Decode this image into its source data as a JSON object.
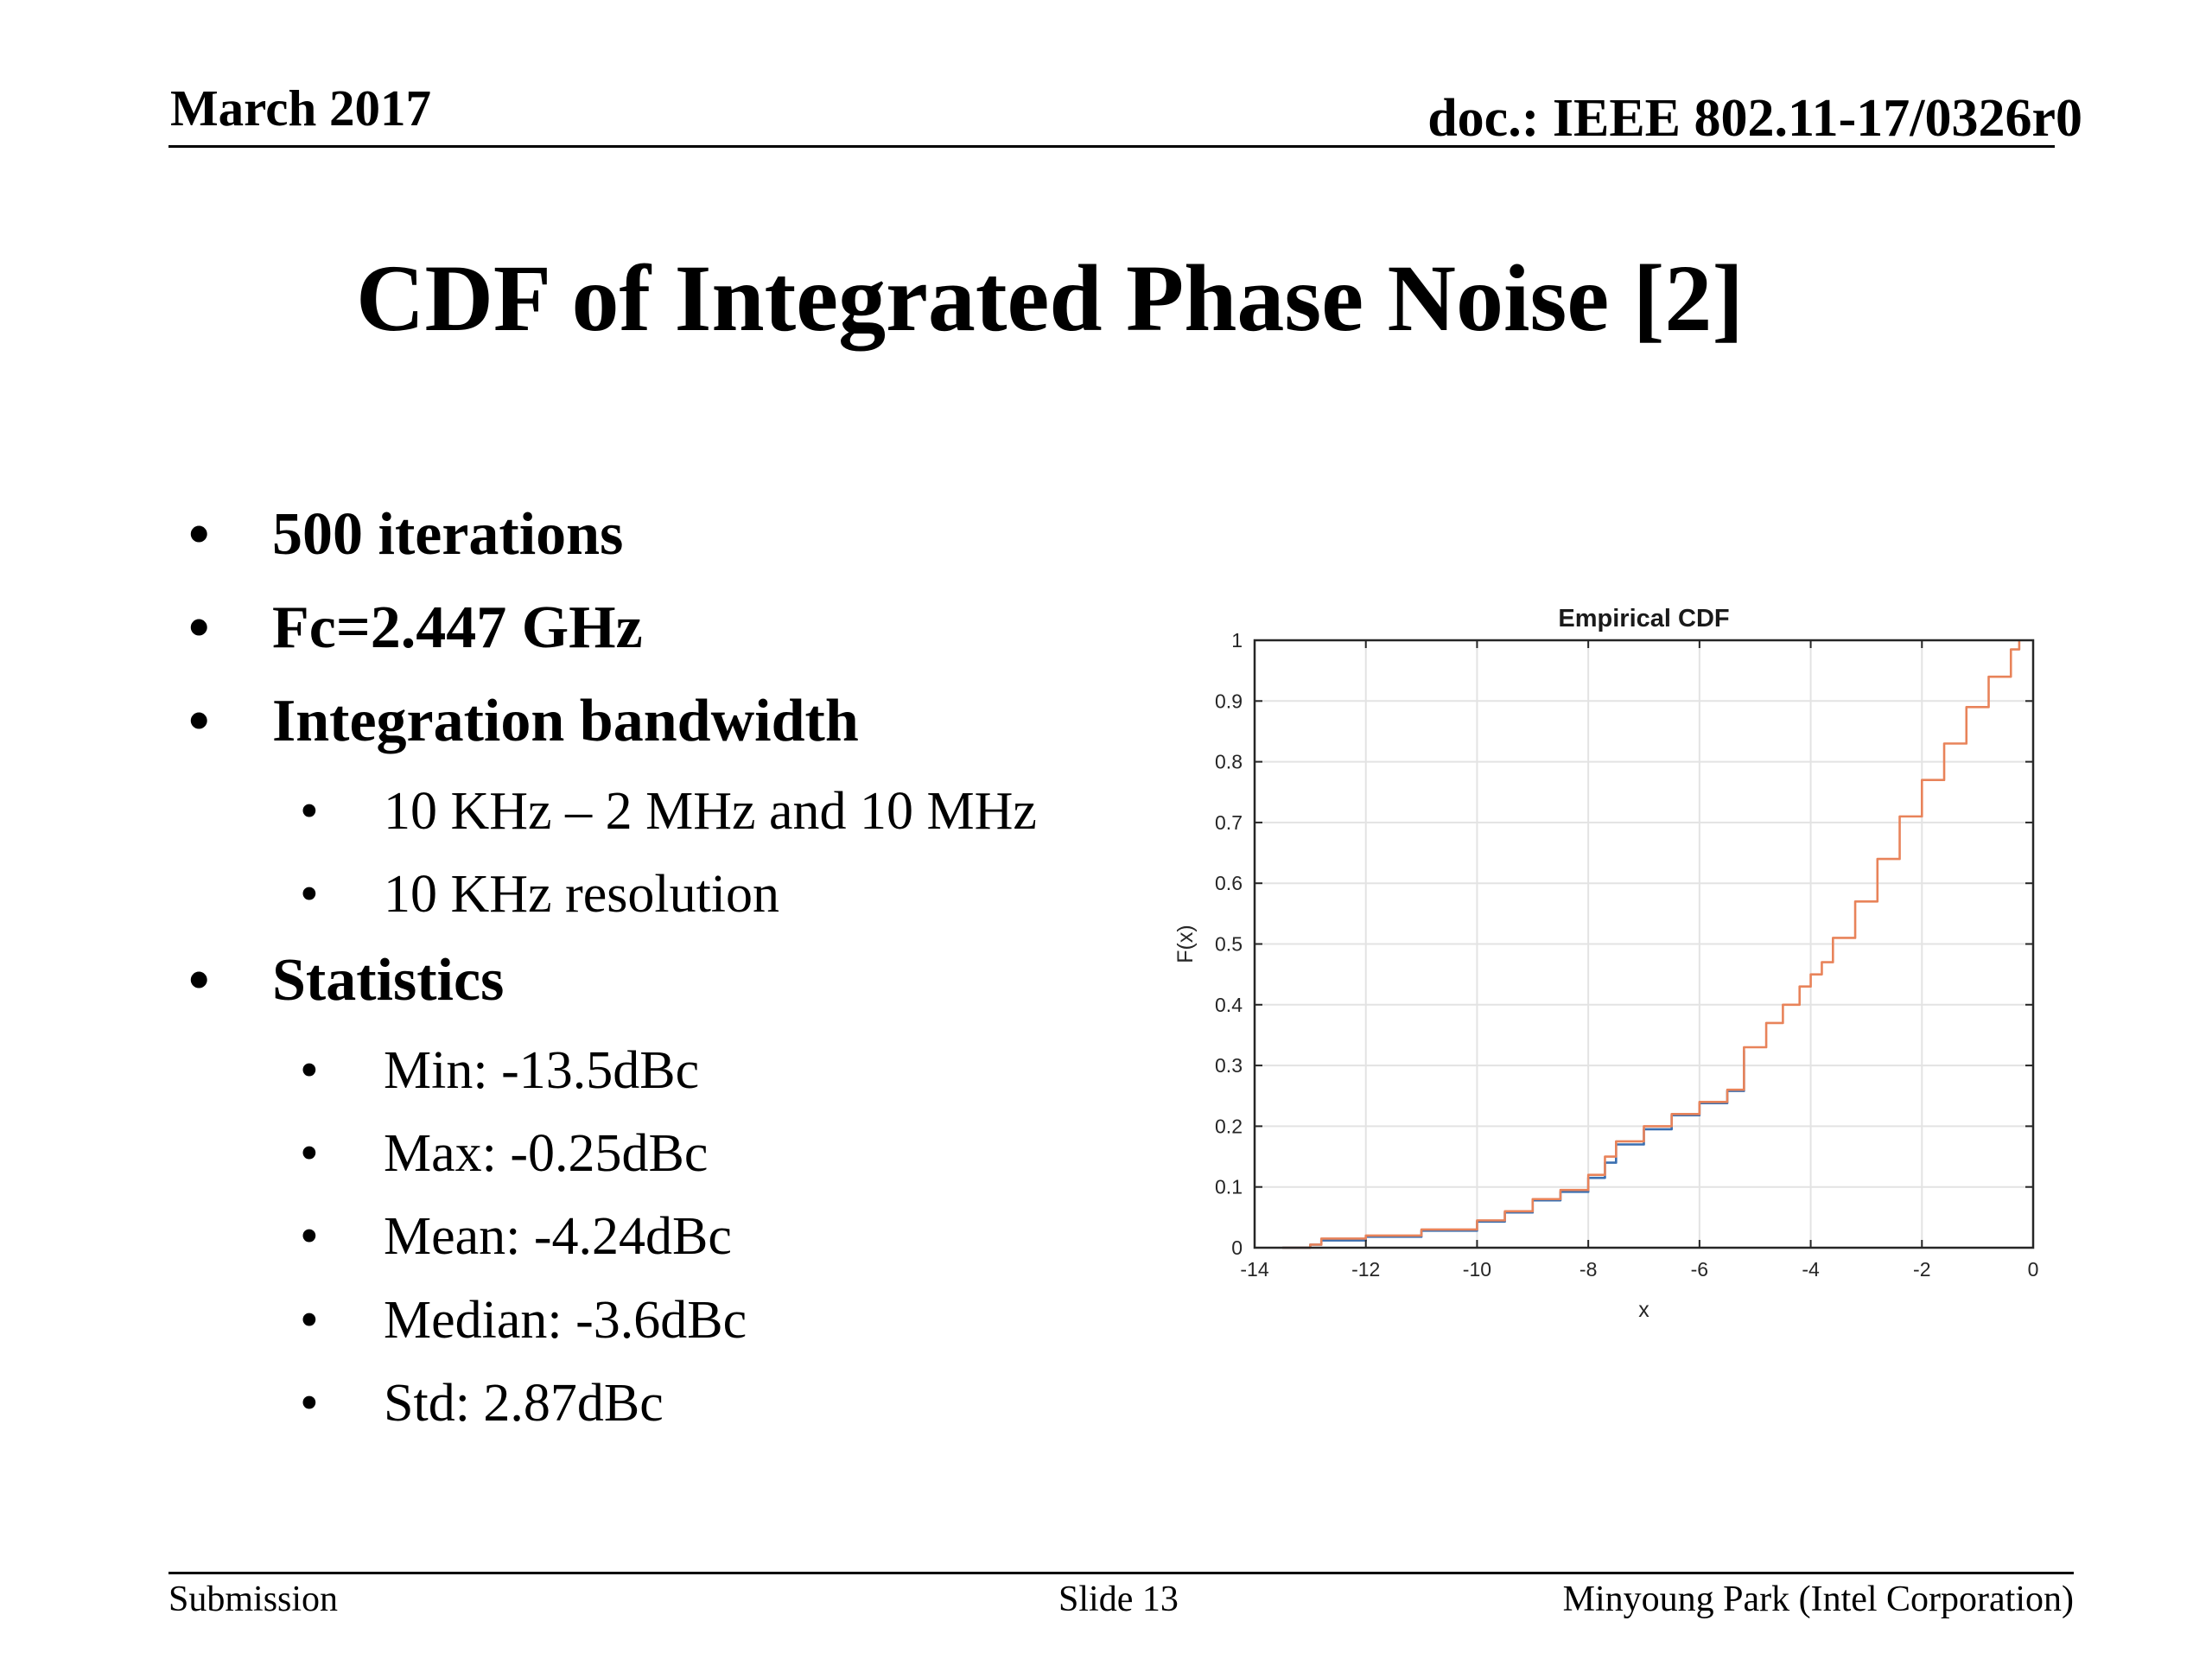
{
  "header": {
    "date": "March 2017",
    "doc_id": "doc.: IEEE 802.11-17/0326r0"
  },
  "slide": {
    "title": "CDF of Integrated Phase Noise [2]"
  },
  "bullets": [
    {
      "level": 1,
      "text": "500 iterations"
    },
    {
      "level": 1,
      "text": "Fc=2.447 GHz"
    },
    {
      "level": 1,
      "text": "Integration bandwidth"
    },
    {
      "level": 2,
      "text": "10 KHz – 2 MHz and 10 MHz"
    },
    {
      "level": 2,
      "text": "10 KHz resolution"
    },
    {
      "level": 1,
      "text": "Statistics"
    },
    {
      "level": 2,
      "text": "Min: -13.5dBc"
    },
    {
      "level": 2,
      "text": "Max: -0.25dBc"
    },
    {
      "level": 2,
      "text": "Mean: -4.24dBc"
    },
    {
      "level": 2,
      "text": "Median: -3.6dBc"
    },
    {
      "level": 2,
      "text": "Std: 2.87dBc"
    }
  ],
  "bullet_glyph": "•",
  "chart_data": {
    "type": "line",
    "title": "Empirical CDF",
    "xlabel": "x",
    "ylabel": "F(x)",
    "xlim": [
      -14,
      0
    ],
    "ylim": [
      0,
      1
    ],
    "xticks": [
      -14,
      -12,
      -10,
      -8,
      -6,
      -4,
      -2,
      0
    ],
    "yticks": [
      0,
      0.1,
      0.2,
      0.3,
      0.4,
      0.5,
      0.6,
      0.7,
      0.8,
      0.9,
      1
    ],
    "grid": true,
    "series": [
      {
        "color": "#e8835a",
        "x": [
          -13.5,
          -13,
          -12.8,
          -12,
          -11,
          -10,
          -9.5,
          -9,
          -8.5,
          -8,
          -7.7,
          -7.5,
          -7,
          -6.5,
          -6,
          -5.5,
          -5.2,
          -4.8,
          -4.5,
          -4.2,
          -4,
          -3.8,
          -3.6,
          -3.2,
          -2.8,
          -2.4,
          -2,
          -1.6,
          -1.2,
          -0.8,
          -0.4,
          -0.25
        ],
        "y": [
          0.0,
          0.005,
          0.015,
          0.02,
          0.03,
          0.045,
          0.06,
          0.08,
          0.095,
          0.12,
          0.15,
          0.175,
          0.2,
          0.22,
          0.24,
          0.26,
          0.33,
          0.37,
          0.4,
          0.43,
          0.45,
          0.47,
          0.51,
          0.57,
          0.64,
          0.71,
          0.77,
          0.83,
          0.89,
          0.94,
          0.985,
          1.0
        ]
      },
      {
        "color": "#3a6fb0",
        "x": [
          -13.5,
          -13,
          -12.8,
          -12,
          -11,
          -10,
          -9.5,
          -9,
          -8.5,
          -8,
          -7.7,
          -7.5,
          -7,
          -6.5,
          -6,
          -5.5,
          -5.2
        ],
        "y": [
          0.0,
          0.005,
          0.012,
          0.018,
          0.028,
          0.043,
          0.058,
          0.078,
          0.092,
          0.115,
          0.14,
          0.17,
          0.195,
          0.218,
          0.238,
          0.258,
          0.325
        ]
      }
    ]
  },
  "footer": {
    "left": "Submission",
    "center": "Slide 13",
    "right": "Minyoung Park (Intel Corporation)"
  }
}
